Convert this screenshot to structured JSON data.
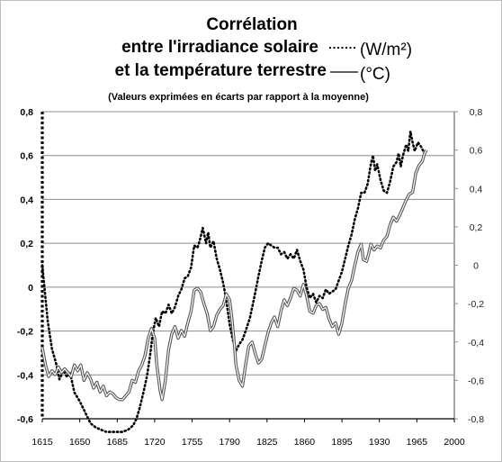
{
  "chart_data": {
    "type": "line",
    "title": "Corrélation",
    "title_line2": "entre  l'irradiance solaire",
    "title_line2_unit": "(W/m²)",
    "title_line3": "et la température terrestre",
    "title_line3_unit": "(°C)",
    "subtitle": "(Valeurs exprimées en écarts par rapport à la moyenne)",
    "x_ticks": [
      1615,
      1650,
      1685,
      1720,
      1755,
      1790,
      1825,
      1860,
      1895,
      1930,
      1965,
      2000
    ],
    "xlim": [
      1615,
      2000
    ],
    "y_left_ticks": [
      "0,8",
      "0,6",
      "0,4",
      "0,2",
      "0",
      "-0,2",
      "-0,4",
      "-0,6"
    ],
    "y_left_lim": [
      -0.6,
      0.8
    ],
    "y_right_ticks": [
      "0,8",
      "0,6",
      "0,4",
      "0,2",
      "0",
      "-0,2",
      "-0,4",
      "-0,6",
      "-0,8"
    ],
    "y_right_lim": [
      -0.8,
      0.8
    ],
    "grid": true,
    "series": [
      {
        "key": "irradiance",
        "style": "dotted",
        "color": "#000000",
        "axis": "left",
        "points": [
          [
            1615,
            0.1
          ],
          [
            1617,
            0.0
          ],
          [
            1620,
            -0.15
          ],
          [
            1624,
            -0.28
          ],
          [
            1628,
            -0.35
          ],
          [
            1631,
            -0.42
          ],
          [
            1635,
            -0.38
          ],
          [
            1638,
            -0.41
          ],
          [
            1641,
            -0.39
          ],
          [
            1645,
            -0.48
          ],
          [
            1650,
            -0.52
          ],
          [
            1655,
            -0.57
          ],
          [
            1660,
            -0.62
          ],
          [
            1665,
            -0.64
          ],
          [
            1670,
            -0.65
          ],
          [
            1675,
            -0.66
          ],
          [
            1680,
            -0.66
          ],
          [
            1685,
            -0.66
          ],
          [
            1690,
            -0.66
          ],
          [
            1695,
            -0.65
          ],
          [
            1700,
            -0.63
          ],
          [
            1703,
            -0.6
          ],
          [
            1706,
            -0.55
          ],
          [
            1710,
            -0.47
          ],
          [
            1713,
            -0.4
          ],
          [
            1716,
            -0.3
          ],
          [
            1718,
            -0.22
          ],
          [
            1721,
            -0.14
          ],
          [
            1724,
            -0.18
          ],
          [
            1727,
            -0.11
          ],
          [
            1730,
            -0.12
          ],
          [
            1733,
            -0.08
          ],
          [
            1736,
            -0.12
          ],
          [
            1739,
            -0.09
          ],
          [
            1742,
            -0.04
          ],
          [
            1745,
            -0.01
          ],
          [
            1748,
            0.04
          ],
          [
            1751,
            0.05
          ],
          [
            1754,
            0.09
          ],
          [
            1757,
            0.19
          ],
          [
            1760,
            0.18
          ],
          [
            1762,
            0.21
          ],
          [
            1765,
            0.27
          ],
          [
            1768,
            0.2
          ],
          [
            1770,
            0.25
          ],
          [
            1772,
            0.18
          ],
          [
            1775,
            0.21
          ],
          [
            1778,
            0.13
          ],
          [
            1781,
            0.08
          ],
          [
            1784,
            0.02
          ],
          [
            1787,
            -0.06
          ],
          [
            1790,
            -0.17
          ],
          [
            1793,
            -0.24
          ],
          [
            1796,
            -0.29
          ],
          [
            1799,
            -0.26
          ],
          [
            1802,
            -0.24
          ],
          [
            1805,
            -0.2
          ],
          [
            1809,
            -0.14
          ],
          [
            1813,
            -0.05
          ],
          [
            1817,
            0.05
          ],
          [
            1820,
            0.12
          ],
          [
            1823,
            0.18
          ],
          [
            1826,
            0.2
          ],
          [
            1829,
            0.19
          ],
          [
            1832,
            0.18
          ],
          [
            1835,
            0.18
          ],
          [
            1838,
            0.15
          ],
          [
            1841,
            0.16
          ],
          [
            1844,
            0.13
          ],
          [
            1847,
            0.15
          ],
          [
            1850,
            0.13
          ],
          [
            1853,
            0.17
          ],
          [
            1856,
            0.12
          ],
          [
            1859,
            0.08
          ],
          [
            1862,
            0.0
          ],
          [
            1865,
            -0.05
          ],
          [
            1868,
            -0.03
          ],
          [
            1871,
            -0.07
          ],
          [
            1874,
            -0.04
          ],
          [
            1877,
            -0.05
          ],
          [
            1880,
            -0.01
          ],
          [
            1883,
            -0.03
          ],
          [
            1886,
            -0.02
          ],
          [
            1889,
            -0.01
          ],
          [
            1892,
            0.03
          ],
          [
            1895,
            0.07
          ],
          [
            1898,
            0.13
          ],
          [
            1901,
            0.19
          ],
          [
            1904,
            0.24
          ],
          [
            1907,
            0.31
          ],
          [
            1910,
            0.36
          ],
          [
            1913,
            0.43
          ],
          [
            1916,
            0.43
          ],
          [
            1919,
            0.47
          ],
          [
            1922,
            0.56
          ],
          [
            1924,
            0.6
          ],
          [
            1926,
            0.53
          ],
          [
            1928,
            0.56
          ],
          [
            1931,
            0.49
          ],
          [
            1934,
            0.44
          ],
          [
            1937,
            0.43
          ],
          [
            1940,
            0.48
          ],
          [
            1943,
            0.55
          ],
          [
            1946,
            0.57
          ],
          [
            1948,
            0.61
          ],
          [
            1950,
            0.55
          ],
          [
            1952,
            0.6
          ],
          [
            1955,
            0.65
          ],
          [
            1957,
            0.62
          ],
          [
            1959,
            0.71
          ],
          [
            1961,
            0.66
          ],
          [
            1963,
            0.62
          ],
          [
            1966,
            0.66
          ],
          [
            1969,
            0.64
          ],
          [
            1972,
            0.61
          ]
        ]
      },
      {
        "key": "temperature",
        "style": "double",
        "color": "#555555",
        "axis": "right",
        "points": [
          [
            1615,
            -0.43
          ],
          [
            1618,
            -0.52
          ],
          [
            1621,
            -0.58
          ],
          [
            1624,
            -0.55
          ],
          [
            1627,
            -0.57
          ],
          [
            1630,
            -0.53
          ],
          [
            1633,
            -0.56
          ],
          [
            1636,
            -0.54
          ],
          [
            1639,
            -0.56
          ],
          [
            1642,
            -0.58
          ],
          [
            1645,
            -0.52
          ],
          [
            1648,
            -0.55
          ],
          [
            1651,
            -0.52
          ],
          [
            1654,
            -0.6
          ],
          [
            1657,
            -0.56
          ],
          [
            1660,
            -0.59
          ],
          [
            1663,
            -0.64
          ],
          [
            1666,
            -0.61
          ],
          [
            1669,
            -0.66
          ],
          [
            1672,
            -0.63
          ],
          [
            1675,
            -0.68
          ],
          [
            1678,
            -0.66
          ],
          [
            1681,
            -0.67
          ],
          [
            1684,
            -0.69
          ],
          [
            1687,
            -0.7
          ],
          [
            1690,
            -0.7
          ],
          [
            1693,
            -0.68
          ],
          [
            1696,
            -0.66
          ],
          [
            1699,
            -0.6
          ],
          [
            1702,
            -0.61
          ],
          [
            1705,
            -0.55
          ],
          [
            1708,
            -0.52
          ],
          [
            1711,
            -0.47
          ],
          [
            1714,
            -0.38
          ],
          [
            1717,
            -0.33
          ],
          [
            1720,
            -0.38
          ],
          [
            1722,
            -0.52
          ],
          [
            1725,
            -0.65
          ],
          [
            1727,
            -0.7
          ],
          [
            1730,
            -0.6
          ],
          [
            1733,
            -0.44
          ],
          [
            1736,
            -0.36
          ],
          [
            1739,
            -0.32
          ],
          [
            1742,
            -0.38
          ],
          [
            1745,
            -0.34
          ],
          [
            1748,
            -0.37
          ],
          [
            1751,
            -0.3
          ],
          [
            1754,
            -0.24
          ],
          [
            1757,
            -0.13
          ],
          [
            1760,
            -0.12
          ],
          [
            1763,
            -0.14
          ],
          [
            1766,
            -0.2
          ],
          [
            1769,
            -0.25
          ],
          [
            1772,
            -0.34
          ],
          [
            1775,
            -0.32
          ],
          [
            1778,
            -0.26
          ],
          [
            1781,
            -0.23
          ],
          [
            1784,
            -0.21
          ],
          [
            1787,
            -0.15
          ],
          [
            1790,
            -0.18
          ],
          [
            1792,
            -0.27
          ],
          [
            1794,
            -0.38
          ],
          [
            1796,
            -0.52
          ],
          [
            1799,
            -0.6
          ],
          [
            1802,
            -0.63
          ],
          [
            1805,
            -0.52
          ],
          [
            1808,
            -0.42
          ],
          [
            1811,
            -0.4
          ],
          [
            1814,
            -0.46
          ],
          [
            1817,
            -0.51
          ],
          [
            1820,
            -0.49
          ],
          [
            1823,
            -0.42
          ],
          [
            1826,
            -0.35
          ],
          [
            1829,
            -0.3
          ],
          [
            1832,
            -0.27
          ],
          [
            1835,
            -0.32
          ],
          [
            1838,
            -0.24
          ],
          [
            1841,
            -0.18
          ],
          [
            1844,
            -0.21
          ],
          [
            1847,
            -0.17
          ],
          [
            1850,
            -0.12
          ],
          [
            1853,
            -0.13
          ],
          [
            1856,
            -0.16
          ],
          [
            1859,
            -0.1
          ],
          [
            1862,
            -0.16
          ],
          [
            1865,
            -0.24
          ],
          [
            1868,
            -0.25
          ],
          [
            1871,
            -0.21
          ],
          [
            1874,
            -0.2
          ],
          [
            1877,
            -0.23
          ],
          [
            1880,
            -0.22
          ],
          [
            1883,
            -0.28
          ],
          [
            1886,
            -0.32
          ],
          [
            1889,
            -0.3
          ],
          [
            1892,
            -0.36
          ],
          [
            1895,
            -0.3
          ],
          [
            1898,
            -0.2
          ],
          [
            1901,
            -0.12
          ],
          [
            1904,
            -0.08
          ],
          [
            1907,
            0.0
          ],
          [
            1910,
            0.07
          ],
          [
            1913,
            0.11
          ],
          [
            1915,
            0.03
          ],
          [
            1918,
            0.02
          ],
          [
            1920,
            0.06
          ],
          [
            1922,
            0.11
          ],
          [
            1925,
            0.08
          ],
          [
            1928,
            0.1
          ],
          [
            1931,
            0.09
          ],
          [
            1934,
            0.13
          ],
          [
            1937,
            0.15
          ],
          [
            1940,
            0.21
          ],
          [
            1943,
            0.25
          ],
          [
            1946,
            0.23
          ],
          [
            1949,
            0.26
          ],
          [
            1952,
            0.3
          ],
          [
            1955,
            0.34
          ],
          [
            1958,
            0.37
          ],
          [
            1961,
            0.38
          ],
          [
            1964,
            0.48
          ],
          [
            1967,
            0.52
          ],
          [
            1970,
            0.54
          ],
          [
            1972,
            0.58
          ],
          [
            1974,
            0.6
          ]
        ]
      }
    ]
  }
}
